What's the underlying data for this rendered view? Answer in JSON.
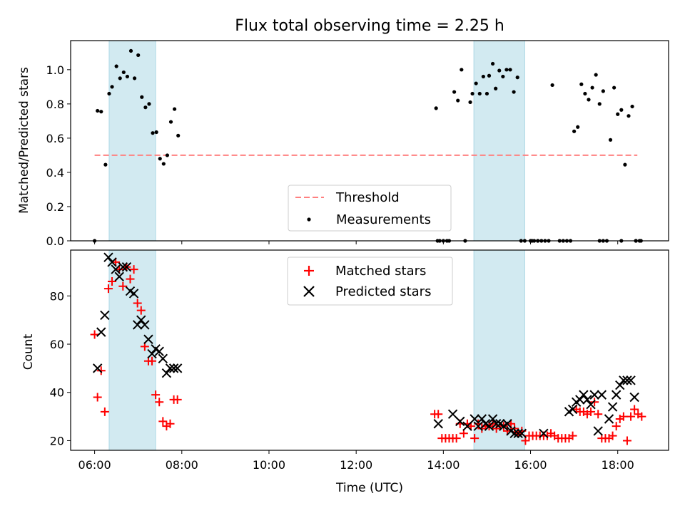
{
  "chart_data": [
    {
      "type": "scatter",
      "title": "Flux total observing time = 2.25 h",
      "ylabel": "Matched/Predicted stars",
      "xlim": [
        "05:27",
        "19:10"
      ],
      "ylim": [
        0,
        1.17
      ],
      "xticks": [],
      "yticks": [
        0.0,
        0.2,
        0.4,
        0.6,
        0.8,
        1.0
      ],
      "ytick_labels": [
        "0.0",
        "0.2",
        "0.4",
        "0.6",
        "0.8",
        "1.0"
      ],
      "shaded_intervals": [
        [
          "06:20",
          "07:24"
        ],
        [
          "14:42",
          "15:52"
        ]
      ],
      "colors": {
        "threshold": "#ff8080",
        "shade": "#add8e6",
        "measurements": "#000000"
      },
      "threshold": {
        "name": "Threshold",
        "y": 0.5,
        "x": [
          "06:00",
          "18:27"
        ]
      },
      "series": [
        {
          "name": "Measurements",
          "marker": "dot",
          "x": [
            "06:00",
            "06:04",
            "06:09",
            "06:15",
            "06:20",
            "06:24",
            "06:30",
            "06:35",
            "06:40",
            "06:45",
            "06:50",
            "06:55",
            "07:00",
            "07:05",
            "07:10",
            "07:15",
            "07:20",
            "07:25",
            "07:30",
            "07:35",
            "07:40",
            "07:45",
            "07:50",
            "07:55",
            "13:50",
            "13:55",
            "13:52",
            "14:00",
            "14:05",
            "14:08",
            "14:15",
            "14:20",
            "14:25",
            "14:30",
            "14:37",
            "14:40",
            "14:45",
            "14:50",
            "14:55",
            "15:00",
            "15:03",
            "15:08",
            "15:12",
            "15:17",
            "15:22",
            "15:27",
            "15:32",
            "15:37",
            "15:42",
            "15:47",
            "15:52",
            "16:02",
            "16:10",
            "16:00",
            "16:05",
            "16:10",
            "16:15",
            "16:20",
            "16:25",
            "16:30",
            "16:40",
            "16:45",
            "16:50",
            "16:55",
            "17:00",
            "17:05",
            "17:10",
            "17:15",
            "17:20",
            "17:25",
            "17:30",
            "17:35",
            "17:40",
            "17:45",
            "17:50",
            "17:55",
            "18:00",
            "18:05",
            "18:10",
            "18:15",
            "18:20",
            "18:25",
            "18:30",
            "17:35",
            "17:40",
            "18:05",
            "18:25",
            "18:32"
          ],
          "y": [
            0.0,
            0.76,
            0.755,
            0.445,
            0.86,
            0.9,
            1.02,
            0.95,
            0.985,
            0.96,
            1.11,
            0.95,
            1.085,
            0.84,
            0.78,
            0.8,
            0.63,
            0.635,
            0.48,
            0.45,
            0.5,
            0.695,
            0.77,
            0.615,
            0.775,
            0.0,
            0.0,
            0.0,
            0.0,
            0.0,
            0.87,
            0.82,
            1.0,
            0.0,
            0.81,
            0.86,
            0.92,
            0.86,
            0.96,
            0.86,
            0.965,
            1.035,
            0.89,
            0.995,
            0.96,
            1.0,
            1.0,
            0.87,
            0.955,
            0.0,
            0.0,
            0.0,
            0.0,
            0.0,
            0.0,
            0.0,
            0.0,
            0.0,
            0.0,
            0.91,
            0.0,
            0.0,
            0.0,
            0.0,
            0.64,
            0.665,
            0.915,
            0.86,
            0.825,
            0.895,
            0.97,
            0.8,
            0.875,
            0.0,
            0.59,
            0.895,
            0.74,
            0.765,
            0.445,
            0.73,
            0.785,
            0.0,
            0.0,
            0.0,
            0.0,
            0.0,
            0.0,
            0.0
          ]
        }
      ],
      "legend": {
        "placement": "bottom-center",
        "entries": [
          "Threshold",
          "Measurements"
        ]
      }
    },
    {
      "type": "scatter",
      "xlabel": "Time (UTC)",
      "ylabel": "Count",
      "xlim": [
        "05:27",
        "19:10"
      ],
      "ylim": [
        16,
        99
      ],
      "xticks": [
        "06:00",
        "08:00",
        "10:00",
        "12:00",
        "14:00",
        "16:00",
        "18:00"
      ],
      "yticks": [
        20,
        40,
        60,
        80
      ],
      "ytick_labels": [
        "20",
        "40",
        "60",
        "80"
      ],
      "shaded_intervals": [
        [
          "06:20",
          "07:24"
        ],
        [
          "14:42",
          "15:52"
        ]
      ],
      "colors": {
        "matched": "#ff0000",
        "predicted": "#000000",
        "shade": "#add8e6"
      },
      "series": [
        {
          "name": "Matched stars",
          "marker": "plus",
          "x": [
            "06:00",
            "06:04",
            "06:09",
            "06:14",
            "06:19",
            "06:24",
            "06:29",
            "06:34",
            "06:39",
            "06:44",
            "06:49",
            "06:54",
            "06:59",
            "07:04",
            "07:09",
            "07:14",
            "07:19",
            "07:24",
            "07:29",
            "07:34",
            "07:39",
            "07:44",
            "07:49",
            "07:54",
            "13:48",
            "13:53",
            "13:58",
            "14:03",
            "14:08",
            "14:13",
            "14:18",
            "14:23",
            "14:28",
            "14:33",
            "14:38",
            "14:43",
            "14:48",
            "14:53",
            "14:58",
            "15:03",
            "15:08",
            "15:13",
            "15:18",
            "15:23",
            "15:28",
            "15:33",
            "15:38",
            "15:43",
            "15:48",
            "15:53",
            "15:58",
            "16:03",
            "16:08",
            "16:13",
            "16:18",
            "16:23",
            "16:28",
            "16:33",
            "16:38",
            "16:43",
            "16:48",
            "16:53",
            "16:58",
            "17:03",
            "17:08",
            "17:13",
            "17:18",
            "17:23",
            "17:28",
            "17:33",
            "17:38",
            "17:43",
            "17:48",
            "17:53",
            "17:58",
            "18:03",
            "18:08",
            "18:13",
            "18:18",
            "18:23",
            "18:28",
            "18:33"
          ],
          "y": [
            64,
            38,
            49,
            32,
            83,
            86,
            94,
            91,
            84,
            92,
            87,
            91,
            77,
            74,
            59,
            53,
            53,
            39,
            36,
            28,
            26,
            27,
            37,
            37,
            31,
            31,
            21,
            21,
            21,
            21,
            21,
            27,
            23,
            27,
            26,
            21,
            27,
            25,
            26,
            26,
            27,
            25,
            26,
            26,
            24,
            27,
            25,
            23,
            24,
            20,
            22,
            22,
            22,
            22,
            22,
            22,
            23,
            22,
            21,
            21,
            21,
            21,
            22,
            33,
            32,
            32,
            31,
            32,
            36,
            31,
            21,
            21,
            21,
            22,
            26,
            29,
            30,
            20,
            30,
            33,
            31,
            30
          ]
        },
        {
          "name": "Predicted stars",
          "marker": "x",
          "x": [
            "06:04",
            "06:09",
            "06:14",
            "06:19",
            "06:24",
            "06:29",
            "06:34",
            "06:39",
            "06:44",
            "06:49",
            "06:54",
            "06:59",
            "07:04",
            "07:09",
            "07:14",
            "07:19",
            "07:24",
            "07:29",
            "07:34",
            "07:39",
            "07:44",
            "07:49",
            "07:54",
            "13:53",
            "14:13",
            "14:23",
            "14:33",
            "14:43",
            "14:48",
            "14:53",
            "14:58",
            "15:03",
            "15:08",
            "15:13",
            "15:18",
            "15:23",
            "15:28",
            "15:33",
            "15:38",
            "15:43",
            "15:48",
            "16:18",
            "16:53",
            "16:58",
            "17:03",
            "17:08",
            "17:13",
            "17:18",
            "17:23",
            "17:28",
            "17:33",
            "17:38",
            "17:48",
            "17:53",
            "17:58",
            "18:03",
            "18:08",
            "18:13",
            "18:18",
            "18:23"
          ],
          "y": [
            50,
            65,
            72,
            96,
            94,
            91,
            88,
            92,
            92,
            82,
            81,
            68,
            70,
            68,
            62,
            56,
            58,
            57,
            54,
            48,
            50,
            50,
            50,
            27,
            31,
            28,
            26,
            29,
            26,
            29,
            27,
            26,
            29,
            27,
            27,
            26,
            27,
            24,
            23,
            23,
            23,
            23,
            32,
            33,
            36,
            37,
            39,
            37,
            35,
            39,
            24,
            39,
            29,
            34,
            39,
            43,
            45,
            45,
            45,
            38
          ]
        }
      ],
      "legend": {
        "placement": "top-center",
        "entries": [
          "Matched stars",
          "Predicted stars"
        ]
      }
    }
  ]
}
